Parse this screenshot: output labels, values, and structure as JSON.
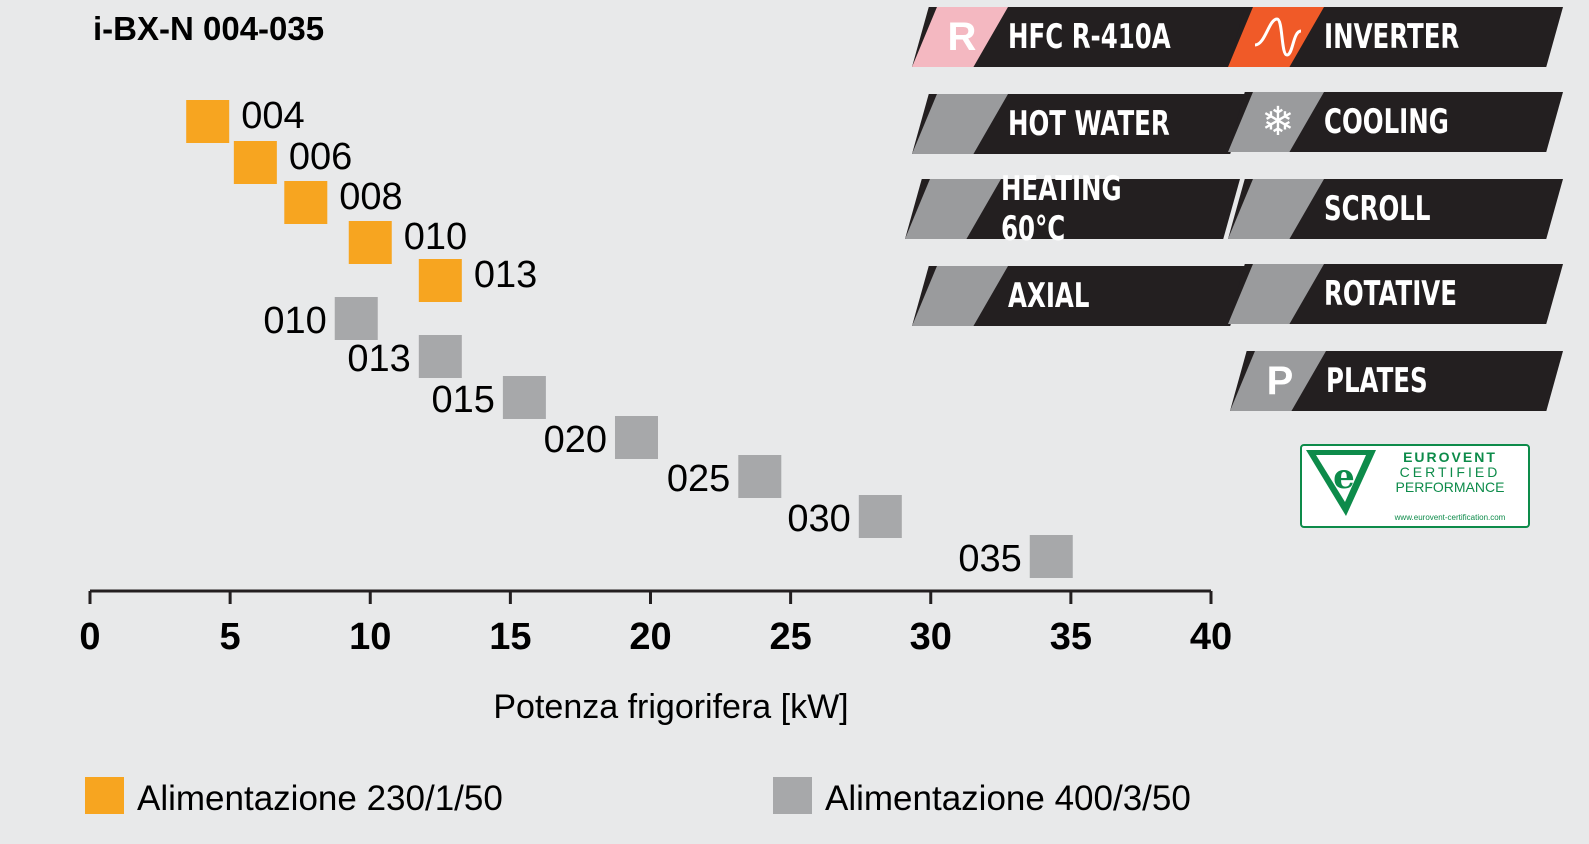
{
  "title": "i-BX-N 004-035",
  "chart_data": {
    "type": "scatter",
    "xlabel": "Potenza frigorifera [kW]",
    "xlim": [
      0,
      40
    ],
    "xticks": [
      "0",
      "5",
      "10",
      "15",
      "20",
      "25",
      "30",
      "35",
      "40"
    ],
    "series": [
      {
        "name": "Alimentazione 230/1/50",
        "color": "#f7a520",
        "points": [
          {
            "label": "004",
            "x": 4.2
          },
          {
            "label": "006",
            "x": 5.9
          },
          {
            "label": "008",
            "x": 7.7
          },
          {
            "label": "010",
            "x": 10.0
          },
          {
            "label": "013",
            "x": 12.5
          }
        ]
      },
      {
        "name": "Alimentazione 400/3/50",
        "color": "#a7a8aa",
        "points": [
          {
            "label": "010",
            "x": 9.5
          },
          {
            "label": "013",
            "x": 12.5
          },
          {
            "label": "015",
            "x": 15.5
          },
          {
            "label": "020",
            "x": 19.5
          },
          {
            "label": "025",
            "x": 23.9
          },
          {
            "label": "030",
            "x": 28.2
          },
          {
            "label": "035",
            "x": 34.3
          }
        ]
      }
    ]
  },
  "badges": [
    {
      "text": "HFC R-410A",
      "icon": "r-refrigerant-icon",
      "glyph": "R",
      "tone": "pink"
    },
    {
      "text": "INVERTER",
      "icon": "inverter-wave-icon",
      "glyph": "",
      "tone": "orange"
    },
    {
      "text": "HOT WATER",
      "icon": "shower-icon",
      "glyph": "",
      "tone": "grey"
    },
    {
      "text": "COOLING",
      "icon": "snowflake-icon",
      "glyph": "❄",
      "tone": "grey"
    },
    {
      "text": "HEATING 60°C",
      "icon": "flame-60-icon",
      "glyph": "",
      "tone": "grey"
    },
    {
      "text": "SCROLL",
      "icon": "spiral-icon",
      "glyph": "",
      "tone": "grey"
    },
    {
      "text": "AXIAL",
      "icon": "axial-fan-icon",
      "glyph": "",
      "tone": "grey"
    },
    {
      "text": "ROTATIVE",
      "icon": "rotative-icon",
      "glyph": "",
      "tone": "grey"
    },
    {
      "text": "PLATES",
      "icon": "plates-p-icon",
      "glyph": "P",
      "tone": "grey"
    }
  ],
  "eurovent": {
    "line1": "EUROVENT",
    "line2": "CERTIFIED",
    "line3": "PERFORMANCE",
    "url": "www.eurovent-certification.com"
  }
}
